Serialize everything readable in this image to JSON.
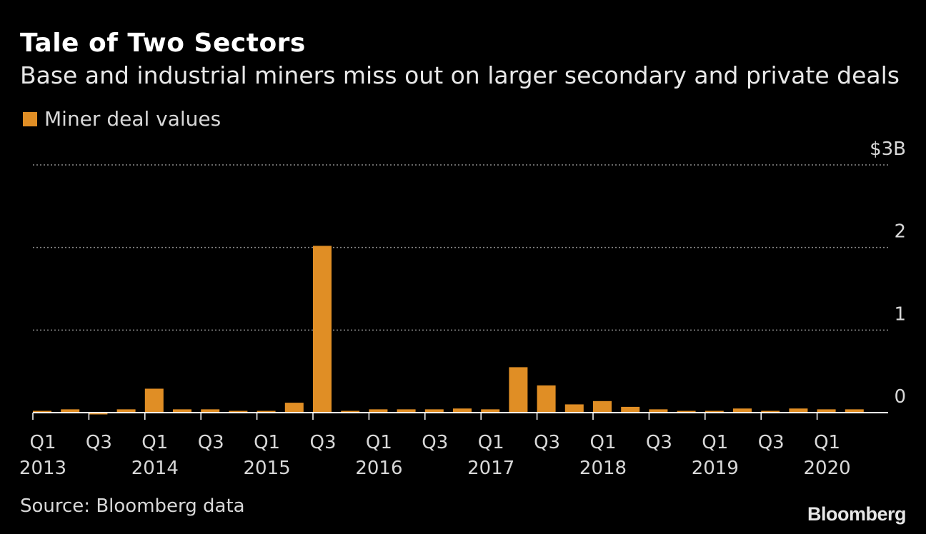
{
  "header": {
    "title": "Tale of Two Sectors",
    "subtitle": "Base and industrial miners miss out on larger secondary and private deals"
  },
  "legend": {
    "label": "Miner deal values",
    "color": "#e08e25"
  },
  "footer": {
    "source": "Source: Bloomberg data",
    "brand": "Bloomberg"
  },
  "colors": {
    "bar": "#e08e25",
    "grid": "#8a8a8a",
    "axis": "#ffffff",
    "text": "#d8d8d8"
  },
  "chart_data": {
    "type": "bar",
    "title": "Tale of Two Sectors",
    "subtitle": "Base and industrial miners miss out on larger secondary and private deals",
    "xlabel": "",
    "ylabel": "",
    "unit": "$B",
    "ylim": [
      0,
      3
    ],
    "yticks": [
      0,
      1,
      2,
      3
    ],
    "ytick_labels": [
      "0",
      "1",
      "2",
      "$3B"
    ],
    "categories": [
      "Q1 2013",
      "Q2 2013",
      "Q3 2013",
      "Q4 2013",
      "Q1 2014",
      "Q2 2014",
      "Q3 2014",
      "Q4 2014",
      "Q1 2015",
      "Q2 2015",
      "Q3 2015",
      "Q4 2015",
      "Q1 2016",
      "Q2 2016",
      "Q3 2016",
      "Q4 2016",
      "Q1 2017",
      "Q2 2017",
      "Q3 2017",
      "Q4 2017",
      "Q1 2018",
      "Q2 2018",
      "Q3 2018",
      "Q4 2018",
      "Q1 2019",
      "Q2 2019",
      "Q3 2019",
      "Q4 2019",
      "Q1 2020",
      "Q2 2020"
    ],
    "series": [
      {
        "name": "Miner deal values",
        "values": [
          0.02,
          0.04,
          -0.01,
          0.04,
          0.29,
          0.04,
          0.04,
          0.02,
          0.02,
          0.12,
          2.02,
          0.02,
          0.04,
          0.04,
          0.04,
          0.05,
          0.04,
          0.55,
          0.33,
          0.1,
          0.14,
          0.07,
          0.04,
          0.02,
          0.02,
          0.05,
          0.02,
          0.05,
          0.04,
          0.04
        ]
      }
    ],
    "x_tick_labels": [
      {
        "index": 0,
        "q": "Q1",
        "year": "2013"
      },
      {
        "index": 2,
        "q": "Q3",
        "year": ""
      },
      {
        "index": 4,
        "q": "Q1",
        "year": "2014"
      },
      {
        "index": 6,
        "q": "Q3",
        "year": ""
      },
      {
        "index": 8,
        "q": "Q1",
        "year": "2015"
      },
      {
        "index": 10,
        "q": "Q3",
        "year": ""
      },
      {
        "index": 12,
        "q": "Q1",
        "year": "2016"
      },
      {
        "index": 14,
        "q": "Q3",
        "year": ""
      },
      {
        "index": 16,
        "q": "Q1",
        "year": "2017"
      },
      {
        "index": 18,
        "q": "Q3",
        "year": ""
      },
      {
        "index": 20,
        "q": "Q1",
        "year": "2018"
      },
      {
        "index": 22,
        "q": "Q3",
        "year": ""
      },
      {
        "index": 24,
        "q": "Q1",
        "year": "2019"
      },
      {
        "index": 26,
        "q": "Q3",
        "year": ""
      },
      {
        "index": 28,
        "q": "Q1",
        "year": "2020"
      }
    ],
    "grid": true,
    "legend_position": "top-left"
  }
}
